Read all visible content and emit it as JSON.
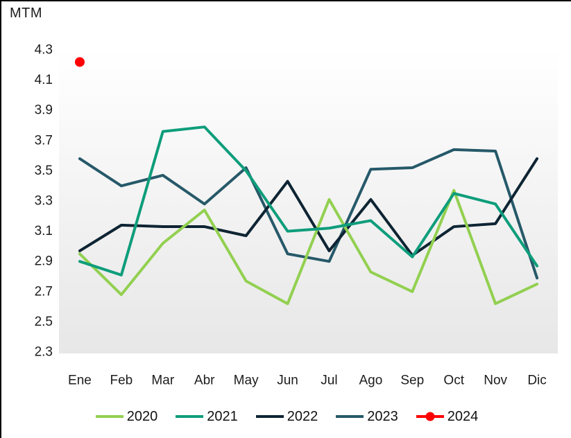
{
  "window": {
    "title_label": "MTM"
  },
  "chart_data": {
    "type": "line",
    "title": "MTM",
    "categories": [
      "Ene",
      "Feb",
      "Mar",
      "Abr",
      "May",
      "Jun",
      "Jul",
      "Ago",
      "Sep",
      "Oct",
      "Nov",
      "Dic"
    ],
    "series": [
      {
        "name": "2020",
        "color": "#92d050",
        "marker": "none",
        "values": [
          2.95,
          2.68,
          3.02,
          3.24,
          2.77,
          2.62,
          3.31,
          2.83,
          2.7,
          3.37,
          2.62,
          2.75
        ]
      },
      {
        "name": "2021",
        "color": "#0e9d7b",
        "marker": "none",
        "values": [
          2.9,
          2.81,
          3.76,
          3.79,
          3.5,
          3.1,
          3.12,
          3.17,
          2.93,
          3.35,
          3.28,
          2.87
        ]
      },
      {
        "name": "2022",
        "color": "#0e2433",
        "marker": "none",
        "values": [
          2.97,
          3.14,
          3.13,
          3.13,
          3.07,
          3.43,
          2.97,
          3.31,
          2.94,
          3.13,
          3.15,
          3.58
        ]
      },
      {
        "name": "2023",
        "color": "#265969",
        "marker": "none",
        "values": [
          3.58,
          3.4,
          3.47,
          3.28,
          3.52,
          2.95,
          2.9,
          3.51,
          3.52,
          3.64,
          3.63,
          2.79
        ]
      },
      {
        "name": "2024",
        "color": "#ff0000",
        "marker": "circle",
        "values": [
          4.22,
          null,
          null,
          null,
          null,
          null,
          null,
          null,
          null,
          null,
          null,
          null
        ]
      }
    ],
    "ylabel": "MTM",
    "xlabel": "",
    "ylim": [
      2.3,
      4.3
    ],
    "ytick_labels": [
      "4.3",
      "4.1",
      "3.9",
      "3.7",
      "3.5",
      "3.3",
      "3.1",
      "2.9",
      "2.7",
      "2.5",
      "2.3"
    ],
    "grid": false,
    "legend_position": "bottom",
    "plot_bg_top": "#ffffff",
    "plot_bg_bottom": "#e7e7e7",
    "axis_text_color": "#1c1c1c"
  }
}
